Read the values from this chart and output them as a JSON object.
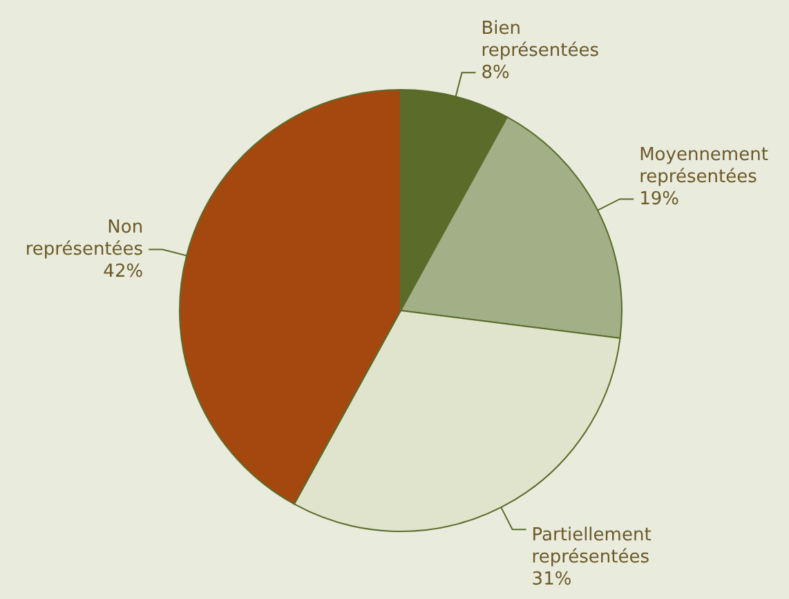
{
  "chart_data": {
    "type": "pie",
    "categories": [
      "Bien représentées",
      "Moyennement représentées",
      "Partiellement représentées",
      "Non représentées"
    ],
    "values": [
      8,
      19,
      31,
      42
    ],
    "value_labels": [
      "8%",
      "19%",
      "31%",
      "42%"
    ],
    "colors": [
      "#5a6b2a",
      "#a3b087",
      "#e1e4cd",
      "#a5480f"
    ],
    "legend": false
  }
}
